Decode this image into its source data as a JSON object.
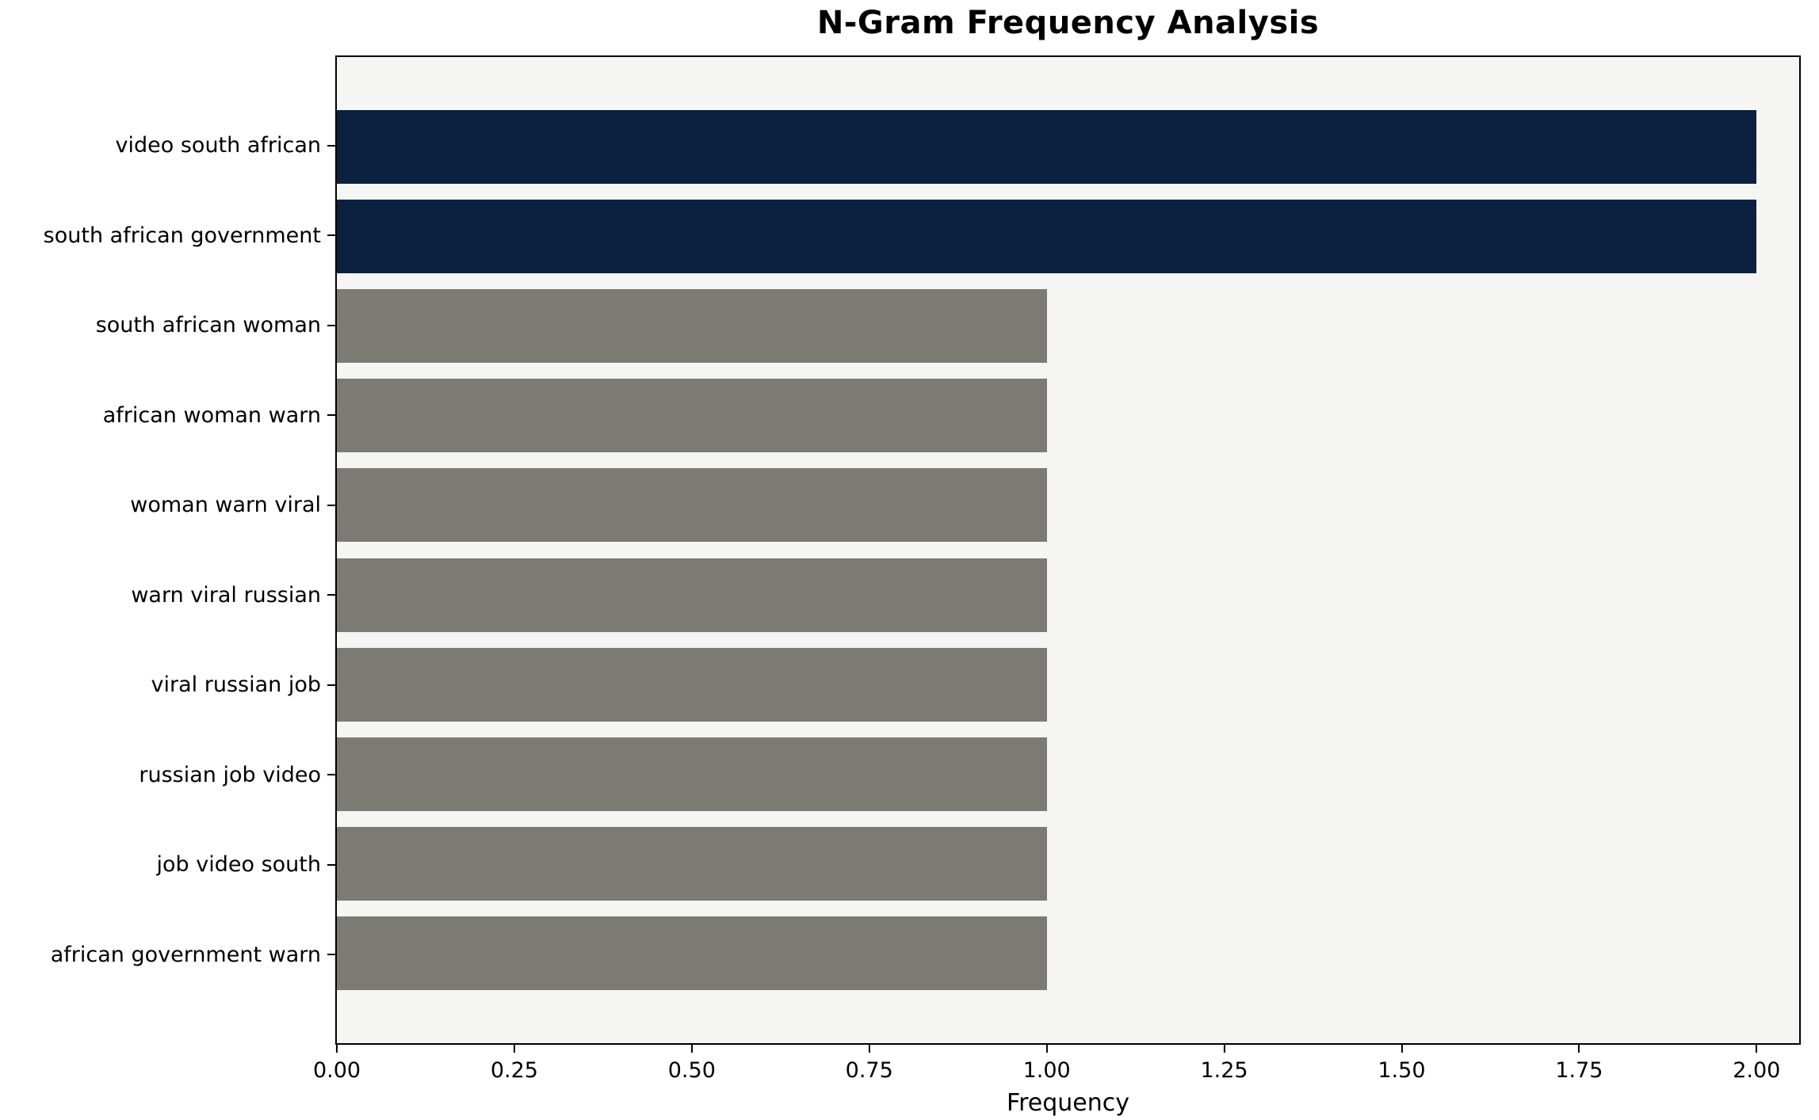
{
  "chart_data": {
    "type": "bar",
    "orientation": "horizontal",
    "title": "N-Gram Frequency Analysis",
    "xlabel": "Frequency",
    "ylabel": "",
    "categories": [
      "video south african",
      "south african government",
      "south african woman",
      "african woman warn",
      "woman warn viral",
      "warn viral russian",
      "viral russian job",
      "russian job video",
      "job video south",
      "african government warn"
    ],
    "values": [
      2,
      2,
      1,
      1,
      1,
      1,
      1,
      1,
      1,
      1
    ],
    "colors": [
      "#0a2240",
      "#0a2240",
      "#7b7b74",
      "#7b7b74",
      "#7b7b74",
      "#7b7b74",
      "#7b7b74",
      "#7b7b74",
      "#7b7b74",
      "#7b7b74"
    ],
    "x_ticks": [
      "0.00",
      "0.25",
      "0.50",
      "0.75",
      "1.00",
      "1.25",
      "1.50",
      "1.75",
      "2.00"
    ],
    "xlim": [
      0,
      2.06
    ],
    "grid": false,
    "legend_position": "none",
    "plot_background": "#f5f5f3",
    "frame_color": "#000000"
  }
}
